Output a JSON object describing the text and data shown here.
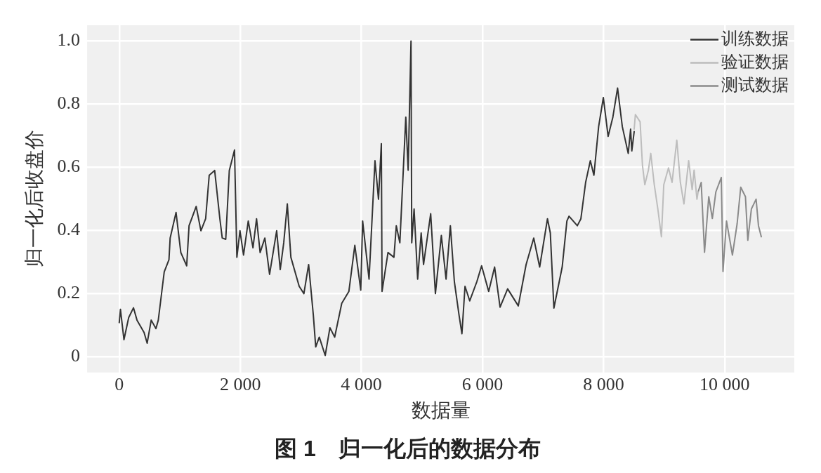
{
  "chart_data": {
    "type": "line",
    "title": "图 1　归一化后的数据分布",
    "xlabel": "数据量",
    "ylabel": "归一化后收盘价",
    "xlim": [
      -530,
      11150
    ],
    "ylim": [
      -0.05,
      1.05
    ],
    "xticks": [
      0,
      {
        "value": 2000,
        "label": "2 000"
      },
      {
        "value": 4000,
        "label": "4 000"
      },
      {
        "value": 6000,
        "label": "6 000"
      },
      {
        "value": 8000,
        "label": "8 000"
      },
      {
        "value": 10000,
        "label": "10 000"
      }
    ],
    "yticks": [
      0,
      0.2,
      0.4,
      0.6,
      0.8,
      {
        "value": 1,
        "label": "1.0"
      }
    ],
    "grid": true,
    "legend": "top right",
    "marker": "none",
    "line_style": "solid",
    "series": [
      {
        "name": "训练数据",
        "color": "#333333",
        "x": [
          0,
          20,
          78,
          156,
          235,
          293,
          410,
          461,
          528,
          606,
          645,
          704,
          743,
          821,
          841,
          938,
          1017,
          1114,
          1153,
          1271,
          1349,
          1427,
          1486,
          1576,
          1662,
          1701,
          1759,
          1818,
          1904,
          1943,
          1994,
          2053,
          2131,
          2209,
          2268,
          2327,
          2405,
          2483,
          2600,
          2659,
          2717,
          2776,
          2835,
          2972,
          3050,
          3128,
          3206,
          3245,
          3304,
          3402,
          3480,
          3558,
          3675,
          3793,
          3891,
          3989,
          4020,
          4126,
          4224,
          4282,
          4329,
          4341,
          4439,
          4537,
          4576,
          4635,
          4733,
          4772,
          4819,
          4831,
          4870,
          4929,
          4987,
          5026,
          5144,
          5222,
          5320,
          5398,
          5469,
          5535,
          5613,
          5660,
          5711,
          5789,
          5907,
          5985,
          6102,
          6200,
          6290,
          6415,
          6591,
          6720,
          6846,
          6944,
          7073,
          7120,
          7179,
          7316,
          7394,
          7429,
          7566,
          7625,
          7703,
          7781,
          7840,
          7918,
          7996,
          8075,
          8153,
          8231,
          8309,
          8407,
          8446,
          8466,
          8505
        ],
        "values": [
          0.108,
          0.15,
          0.054,
          0.124,
          0.155,
          0.116,
          0.077,
          0.043,
          0.116,
          0.089,
          0.116,
          0.208,
          0.269,
          0.307,
          0.376,
          0.457,
          0.33,
          0.288,
          0.415,
          0.476,
          0.399,
          0.437,
          0.575,
          0.59,
          0.437,
          0.376,
          0.372,
          0.59,
          0.655,
          0.315,
          0.399,
          0.322,
          0.43,
          0.345,
          0.437,
          0.33,
          0.376,
          0.261,
          0.399,
          0.276,
          0.361,
          0.484,
          0.315,
          0.223,
          0.2,
          0.292,
          0.131,
          0.031,
          0.062,
          0.004,
          0.092,
          0.062,
          0.169,
          0.207,
          0.353,
          0.211,
          0.43,
          0.246,
          0.621,
          0.499,
          0.675,
          0.207,
          0.33,
          0.315,
          0.415,
          0.361,
          0.759,
          0.591,
          1.0,
          0.361,
          0.468,
          0.246,
          0.392,
          0.292,
          0.453,
          0.2,
          0.384,
          0.246,
          0.415,
          0.238,
          0.131,
          0.073,
          0.223,
          0.177,
          0.238,
          0.288,
          0.207,
          0.284,
          0.157,
          0.215,
          0.161,
          0.292,
          0.376,
          0.284,
          0.437,
          0.392,
          0.154,
          0.284,
          0.43,
          0.445,
          0.415,
          0.437,
          0.552,
          0.621,
          0.575,
          0.729,
          0.821,
          0.698,
          0.759,
          0.851,
          0.729,
          0.644,
          0.721,
          0.652,
          0.713
        ]
      },
      {
        "name": "验证数据",
        "color": "#bdbdbd",
        "x": [
          8505,
          8525,
          8603,
          8642,
          8681,
          8740,
          8779,
          8837,
          8896,
          8955,
          8994,
          9072,
          9131,
          9209,
          9268,
          9327,
          9405,
          9463,
          9495,
          9542,
          9561
        ],
        "values": [
          0.721,
          0.767,
          0.744,
          0.606,
          0.545,
          0.591,
          0.644,
          0.545,
          0.468,
          0.38,
          0.545,
          0.598,
          0.552,
          0.686,
          0.552,
          0.484,
          0.621,
          0.529,
          0.591,
          0.499,
          0.522
        ]
      },
      {
        "name": "测试数据",
        "color": "#8a8a8a",
        "x": [
          9561,
          9612,
          9667,
          9737,
          9796,
          9854,
          9944,
          9972,
          10030,
          10128,
          10206,
          10265,
          10343,
          10382,
          10441,
          10519,
          10558,
          10605
        ],
        "values": [
          0.522,
          0.552,
          0.331,
          0.507,
          0.438,
          0.522,
          0.568,
          0.27,
          0.43,
          0.322,
          0.422,
          0.537,
          0.507,
          0.369,
          0.468,
          0.499,
          0.415,
          0.38
        ]
      }
    ]
  }
}
